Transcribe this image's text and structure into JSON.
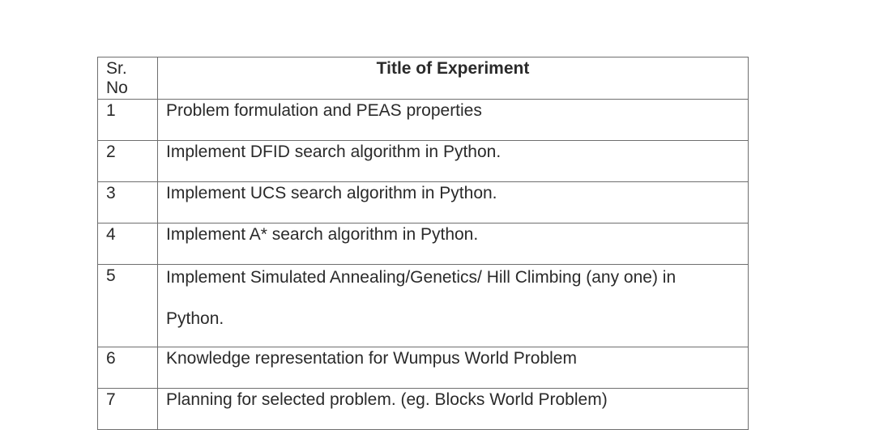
{
  "table": {
    "header": {
      "sr_no": "Sr.\nNo",
      "title": "Title of Experiment"
    },
    "rows": [
      {
        "sr": "1",
        "title": "Problem formulation and PEAS properties"
      },
      {
        "sr": "2",
        "title": "Implement DFID search algorithm in Python."
      },
      {
        "sr": "3",
        "title": "Implement UCS search algorithm in Python."
      },
      {
        "sr": "4",
        "title": "Implement A* search algorithm in Python."
      },
      {
        "sr": "5",
        "title": "Implement Simulated Annealing/Genetics/ Hill Climbing (any one) in Python."
      },
      {
        "sr": "6",
        "title": "Knowledge representation for Wumpus World Problem"
      },
      {
        "sr": "7",
        "title": "Planning for selected problem. (eg. Blocks World Problem)"
      }
    ]
  }
}
